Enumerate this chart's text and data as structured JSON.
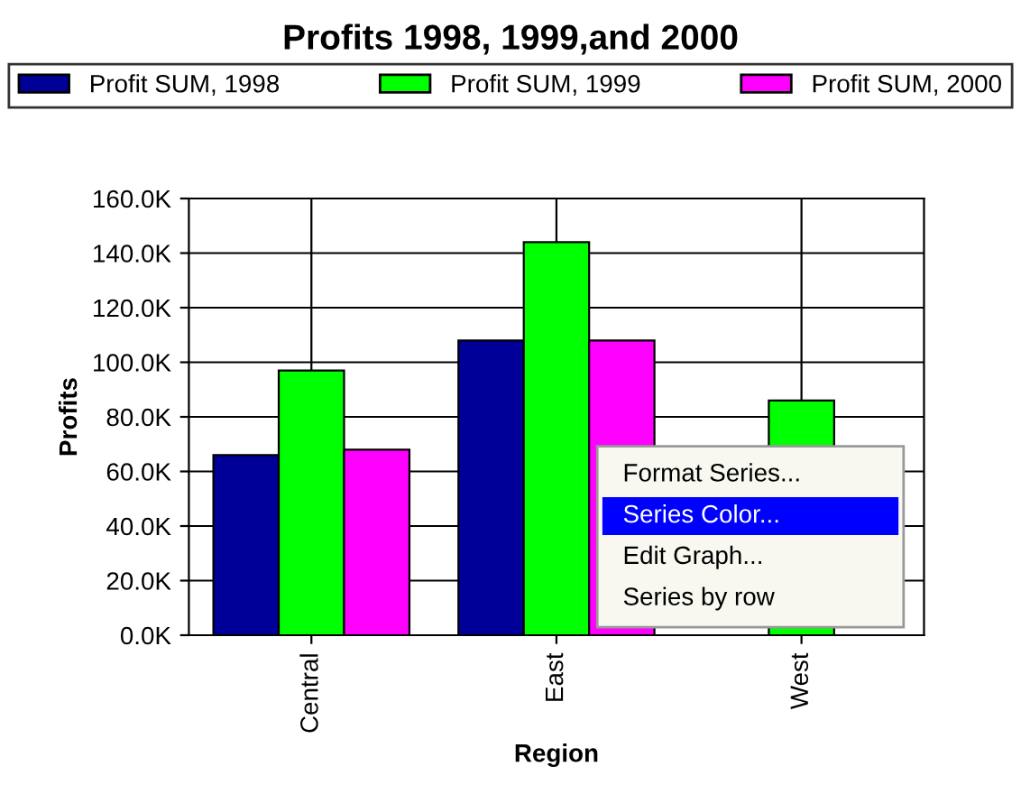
{
  "chart_data": {
    "type": "bar",
    "title": "Profits 1998, 1999,and 2000",
    "xlabel": "Region",
    "ylabel": "Profits",
    "categories": [
      "Central",
      "East",
      "West"
    ],
    "series": [
      {
        "name": "Profit SUM, 1998",
        "color": "#000099",
        "values": [
          66000,
          108000,
          null
        ]
      },
      {
        "name": "Profit SUM, 1999",
        "color": "#00ff00",
        "values": [
          97000,
          144000,
          86000
        ]
      },
      {
        "name": "Profit SUM, 2000",
        "color": "#ff00ff",
        "values": [
          68000,
          108000,
          null
        ]
      }
    ],
    "ylim": [
      0,
      160000
    ],
    "yticks": [
      {
        "value": 0,
        "label": "0.0K"
      },
      {
        "value": 20000,
        "label": "20.0K"
      },
      {
        "value": 40000,
        "label": "40.0K"
      },
      {
        "value": 60000,
        "label": "60.0K"
      },
      {
        "value": 80000,
        "label": "80.0K"
      },
      {
        "value": 100000,
        "label": "100.0K"
      },
      {
        "value": 120000,
        "label": "120.0K"
      },
      {
        "value": 140000,
        "label": "140.0K"
      },
      {
        "value": 160000,
        "label": "160.0K"
      }
    ],
    "grid": true,
    "legend": "top",
    "annotations": [
      "Format Series...",
      "Series Color...",
      "Edit Graph...",
      "Series by row"
    ]
  }
}
